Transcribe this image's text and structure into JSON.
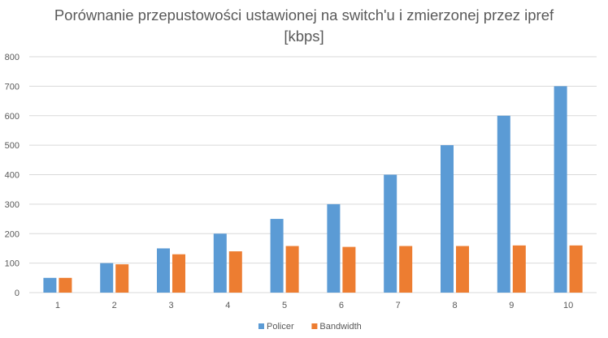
{
  "chart_data": {
    "type": "bar",
    "title_lines": [
      "Porównanie przepustowości ustawionej na switch'u i zmierzonej przez ipref",
      "[kbps]"
    ],
    "categories": [
      "1",
      "2",
      "3",
      "4",
      "5",
      "6",
      "7",
      "8",
      "9",
      "10"
    ],
    "series": [
      {
        "name": "Policer",
        "color": "#5B9BD5",
        "values": [
          50,
          100,
          150,
          200,
          250,
          300,
          400,
          500,
          600,
          700
        ]
      },
      {
        "name": "Bandwidth",
        "color": "#ED7D31",
        "values": [
          50,
          96,
          130,
          140,
          158,
          155,
          158,
          158,
          160,
          160
        ]
      }
    ],
    "ylim": [
      0,
      800
    ],
    "yticks": [
      0,
      100,
      200,
      300,
      400,
      500,
      600,
      700,
      800
    ],
    "grid": true,
    "legend": "bottom",
    "gridline_color": "#D9D9D9"
  }
}
